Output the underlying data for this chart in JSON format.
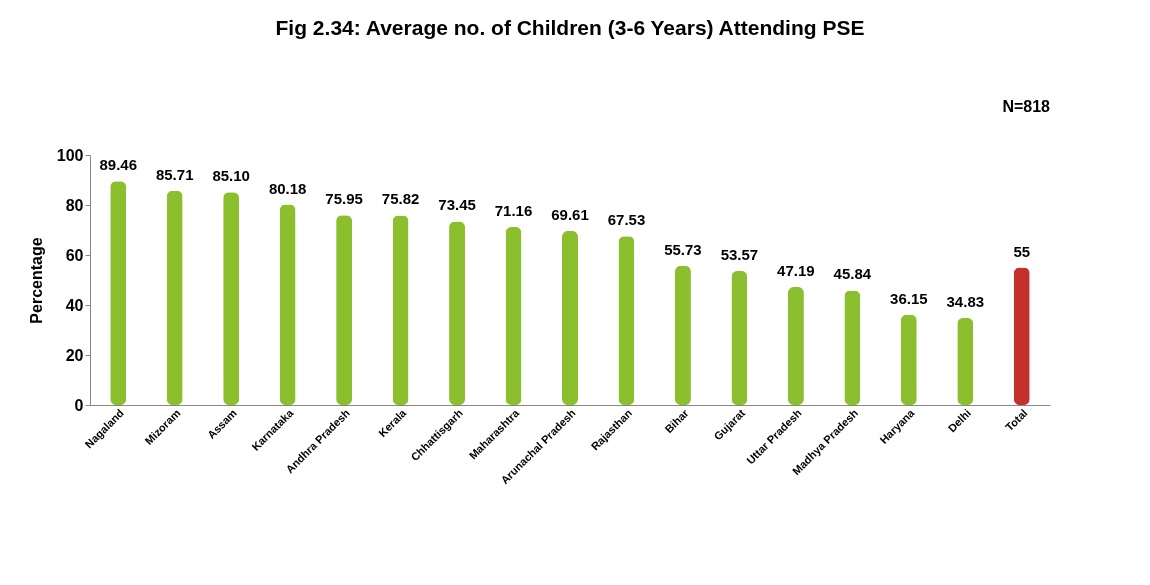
{
  "chart_data": {
    "type": "bar",
    "title": "Fig 2.34: Average no. of Children (3-6 Years)  Attending  PSE",
    "ylabel": "Percentage",
    "categories": [
      "Nagaland",
      "Mizoram",
      "Assam",
      "Karnataka",
      "Andhra Pradesh",
      "Kerala",
      "Chhattisgarh",
      "Maharashtra",
      "Arunachal Pradesh",
      "Rajasthan",
      "Bihar",
      "Gujarat",
      "Uttar Pradesh",
      "Madhya Pradesh",
      "Haryana",
      "Delhi",
      "Total"
    ],
    "values": [
      89.46,
      85.71,
      85.1,
      80.18,
      75.95,
      75.82,
      73.45,
      71.16,
      69.61,
      67.53,
      55.73,
      53.57,
      47.19,
      45.84,
      36.15,
      34.83,
      55
    ],
    "value_labels": [
      "89.46",
      "85.71",
      "85.10",
      "80.18",
      "75.95",
      "75.82",
      "73.45",
      "71.16",
      "69.61",
      "67.53",
      "55.73",
      "53.57",
      "47.19",
      "45.84",
      "36.15",
      "34.83",
      "55"
    ],
    "colors": [
      "#8cbf2e",
      "#8cbf2e",
      "#8cbf2e",
      "#8cbf2e",
      "#8cbf2e",
      "#8cbf2e",
      "#8cbf2e",
      "#8cbf2e",
      "#8cbf2e",
      "#8cbf2e",
      "#8cbf2e",
      "#8cbf2e",
      "#8cbf2e",
      "#8cbf2e",
      "#8cbf2e",
      "#8cbf2e",
      "#c4302b"
    ],
    "ylim": [
      0,
      100
    ],
    "yticks": [
      0,
      20,
      40,
      60,
      80,
      100
    ],
    "grid": false,
    "annotations": [
      "N=818"
    ]
  }
}
